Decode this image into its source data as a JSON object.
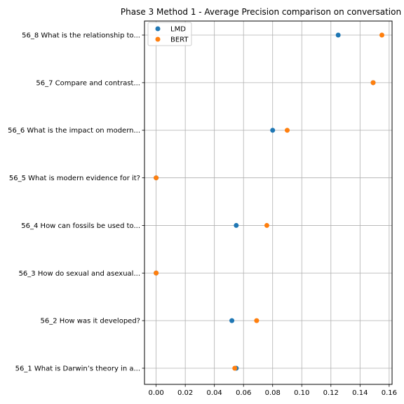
{
  "chart_data": {
    "type": "scatter",
    "title": "Phase 3 Method 1 - Average Precision comparison on conversation",
    "xlabel": "",
    "ylabel": "",
    "xlim": [
      -0.008,
      0.162
    ],
    "xticks": [
      "0.00",
      "0.02",
      "0.04",
      "0.06",
      "0.08",
      "0.10",
      "0.12",
      "0.14",
      "0.16"
    ],
    "categories": [
      "56_1 What is Darwin’s theory in a...",
      "56_2 How was it developed?",
      "56_3 How do sexual and asexual...",
      "56_4 How can fossils be used to...",
      "56_5 What is modern evidence for it?",
      "56_6 What is the impact on modern...",
      "56_7 Compare and contrast...",
      "56_8 What is the relationship to..."
    ],
    "series": [
      {
        "name": "LMD",
        "color": "#1f77b4",
        "values": [
          0.055,
          0.052,
          0.0,
          0.055,
          0.0,
          0.08,
          0.149,
          0.125
        ]
      },
      {
        "name": "BERT",
        "color": "#ff7f0e",
        "values": [
          0.054,
          0.069,
          0.0,
          0.076,
          0.0,
          0.09,
          0.149,
          0.155
        ]
      }
    ],
    "grid": true,
    "legend_position": "top-left"
  }
}
